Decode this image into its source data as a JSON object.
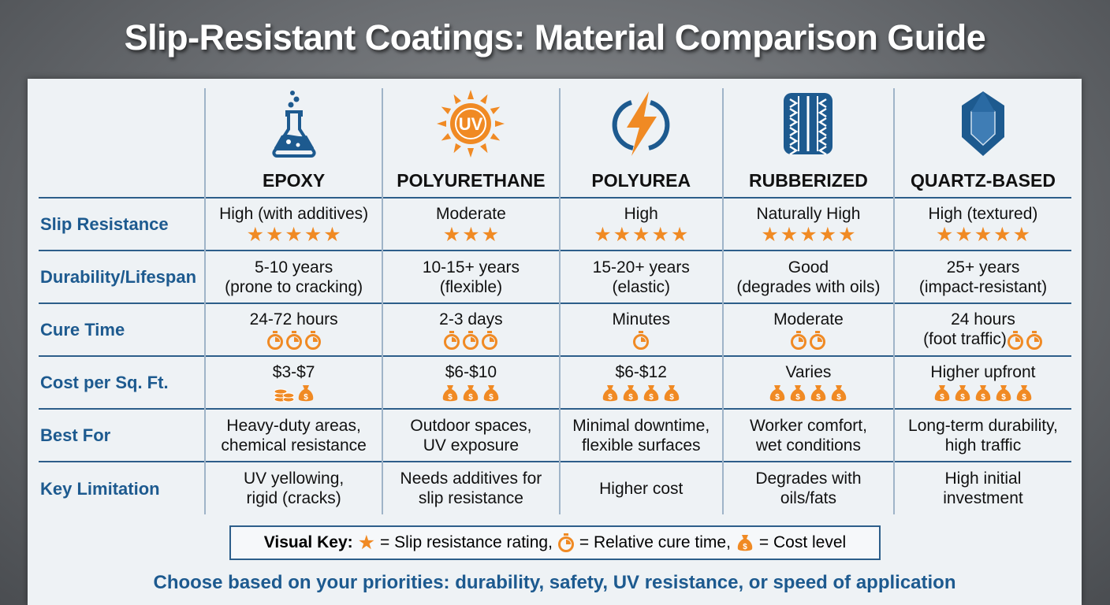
{
  "title": "Slip-Resistant Coatings: Material Comparison Guide",
  "colors": {
    "accent": "#f08a24",
    "blue": "#1d5a8f"
  },
  "materials": [
    {
      "name": "EPOXY",
      "icon": "flask-icon"
    },
    {
      "name": "POLYURETHANE",
      "icon": "uv-sun-icon"
    },
    {
      "name": "POLYUREA",
      "icon": "lightning-icon"
    },
    {
      "name": "RUBBERIZED",
      "icon": "tire-icon"
    },
    {
      "name": "QUARTZ-BASED",
      "icon": "gem-icon"
    }
  ],
  "rows": [
    {
      "label": "Slip Resistance",
      "cells": [
        {
          "lines": [
            "High (with additives)"
          ],
          "icons": [
            "star",
            "star",
            "star",
            "star",
            "star"
          ]
        },
        {
          "lines": [
            "Moderate"
          ],
          "icons": [
            "star",
            "star",
            "star"
          ]
        },
        {
          "lines": [
            "High"
          ],
          "icons": [
            "star",
            "star",
            "star",
            "star",
            "star"
          ]
        },
        {
          "lines": [
            "Naturally High"
          ],
          "icons": [
            "star",
            "star",
            "star",
            "star",
            "star"
          ]
        },
        {
          "lines": [
            "High (textured)"
          ],
          "icons": [
            "star",
            "star",
            "star",
            "star",
            "star"
          ]
        }
      ]
    },
    {
      "label": "Durability/Lifespan",
      "cells": [
        {
          "lines": [
            "5-10 years",
            "(prone to cracking)"
          ]
        },
        {
          "lines": [
            "10-15+ years",
            "(flexible)"
          ]
        },
        {
          "lines": [
            "15-20+ years",
            "(elastic)"
          ]
        },
        {
          "lines": [
            "Good",
            "(degrades with oils)"
          ]
        },
        {
          "lines": [
            "25+ years",
            "(impact-resistant)"
          ]
        }
      ]
    },
    {
      "label": "Cure Time",
      "cells": [
        {
          "lines": [
            "24-72 hours"
          ],
          "icons": [
            "timer",
            "timer",
            "timer"
          ]
        },
        {
          "lines": [
            "2-3 days"
          ],
          "icons": [
            "timer",
            "timer",
            "timer"
          ]
        },
        {
          "lines": [
            "Minutes"
          ],
          "icons": [
            "timer"
          ]
        },
        {
          "lines": [
            "Moderate"
          ],
          "icons": [
            "timer",
            "timer"
          ]
        },
        {
          "lines": [
            "24 hours",
            "(foot traffic)"
          ],
          "icons": [
            "timer",
            "timer"
          ],
          "icons_inline": true
        }
      ]
    },
    {
      "label": "Cost per Sq. Ft.",
      "cells": [
        {
          "lines": [
            "$3-$7"
          ],
          "icons": [
            "coins",
            "bag"
          ]
        },
        {
          "lines": [
            "$6-$10"
          ],
          "icons": [
            "bag",
            "bag",
            "bag"
          ]
        },
        {
          "lines": [
            "$6-$12"
          ],
          "icons": [
            "bag",
            "bag",
            "bag",
            "bag"
          ]
        },
        {
          "lines": [
            "Varies"
          ],
          "icons": [
            "bag",
            "bag",
            "bag",
            "bag"
          ]
        },
        {
          "lines": [
            "Higher upfront"
          ],
          "icons": [
            "bag",
            "bag",
            "bag",
            "bag",
            "bag"
          ]
        }
      ]
    },
    {
      "label": "Best For",
      "cells": [
        {
          "lines": [
            "Heavy-duty areas,",
            "chemical resistance"
          ]
        },
        {
          "lines": [
            "Outdoor spaces,",
            "UV exposure"
          ]
        },
        {
          "lines": [
            "Minimal downtime,",
            "flexible surfaces"
          ]
        },
        {
          "lines": [
            "Worker comfort,",
            "wet conditions"
          ]
        },
        {
          "lines": [
            "Long-term durability,",
            "high traffic"
          ]
        }
      ]
    },
    {
      "label": "Key Limitation",
      "cells": [
        {
          "lines": [
            "UV yellowing,",
            "rigid (cracks)"
          ]
        },
        {
          "lines": [
            "Needs additives for",
            "slip resistance"
          ]
        },
        {
          "lines": [
            "Higher cost"
          ]
        },
        {
          "lines": [
            "Degrades with",
            "oils/fats"
          ]
        },
        {
          "lines": [
            "High initial",
            "investment"
          ]
        }
      ]
    }
  ],
  "key": {
    "title": "Visual Key:",
    "star": "= Slip resistance rating,",
    "timer": "= Relative cure time,",
    "bag": "= Cost level"
  },
  "footer": "Choose based on your priorities: durability, safety, UV resistance, or speed of application"
}
